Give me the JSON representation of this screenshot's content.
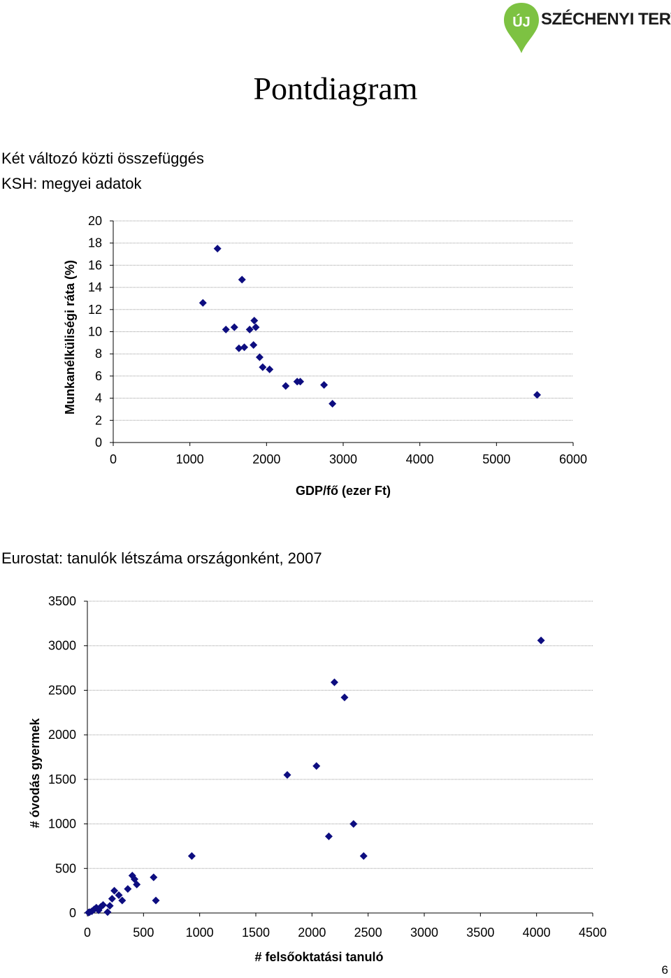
{
  "logo": {
    "badge": "ÚJ",
    "brand": "SZÉCHENYI TERV",
    "badge_color": "#7dc242"
  },
  "page": {
    "title": "Pontdiagram",
    "subtitle1": "Két változó közti összefüggés",
    "subtitle2": "KSH: megyei adatok",
    "subtitle3": "Eurostat: tanulók létszáma országonként, 2007",
    "page_number": "6"
  },
  "chart_data": [
    {
      "type": "scatter",
      "title": "",
      "xlabel": "GDP/fő (ezer Ft)",
      "ylabel": "Munkanélküliségi ráta (%)",
      "xlim": [
        0,
        6000
      ],
      "ylim": [
        0,
        20
      ],
      "xticks": [
        0,
        1000,
        2000,
        3000,
        4000,
        5000,
        6000
      ],
      "yticks": [
        0,
        2,
        4,
        6,
        8,
        10,
        12,
        14,
        16,
        18,
        20
      ],
      "grid": "horizontal dotted",
      "marker": "diamond",
      "color": "#0d0d80",
      "points": [
        [
          1170,
          12.6
        ],
        [
          1360,
          17.5
        ],
        [
          1470,
          10.2
        ],
        [
          1580,
          10.4
        ],
        [
          1640,
          8.5
        ],
        [
          1680,
          14.7
        ],
        [
          1710,
          8.6
        ],
        [
          1780,
          10.2
        ],
        [
          1830,
          8.8
        ],
        [
          1840,
          11.0
        ],
        [
          1860,
          10.4
        ],
        [
          1910,
          7.7
        ],
        [
          1950,
          6.8
        ],
        [
          2040,
          6.6
        ],
        [
          2250,
          5.1
        ],
        [
          2400,
          5.5
        ],
        [
          2440,
          5.5
        ],
        [
          2750,
          5.2
        ],
        [
          2860,
          3.5
        ],
        [
          5530,
          4.3
        ]
      ]
    },
    {
      "type": "scatter",
      "title": "",
      "xlabel": "# felsőoktatási tanuló",
      "ylabel": "# óvodás gyermek",
      "xlim": [
        0,
        4500
      ],
      "ylim": [
        0,
        3500
      ],
      "xticks": [
        0,
        500,
        1000,
        1500,
        2000,
        2500,
        3000,
        3500,
        4000,
        4500
      ],
      "yticks": [
        0,
        500,
        1000,
        1500,
        2000,
        2500,
        3000,
        3500
      ],
      "grid": "horizontal dotted",
      "marker": "diamond",
      "color": "#0d0d80",
      "points": [
        [
          10,
          5
        ],
        [
          20,
          10
        ],
        [
          40,
          20
        ],
        [
          60,
          40
        ],
        [
          80,
          60
        ],
        [
          100,
          30
        ],
        [
          120,
          70
        ],
        [
          140,
          90
        ],
        [
          180,
          10
        ],
        [
          200,
          80
        ],
        [
          220,
          160
        ],
        [
          240,
          250
        ],
        [
          280,
          200
        ],
        [
          310,
          140
        ],
        [
          360,
          270
        ],
        [
          400,
          420
        ],
        [
          420,
          380
        ],
        [
          440,
          320
        ],
        [
          590,
          400
        ],
        [
          610,
          140
        ],
        [
          930,
          640
        ],
        [
          1780,
          1550
        ],
        [
          2040,
          1650
        ],
        [
          2150,
          860
        ],
        [
          2200,
          2590
        ],
        [
          2290,
          2420
        ],
        [
          2370,
          1000
        ],
        [
          2460,
          640
        ],
        [
          4040,
          3060
        ]
      ]
    }
  ]
}
